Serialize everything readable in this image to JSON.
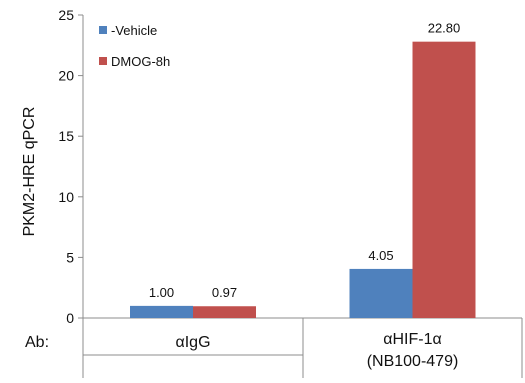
{
  "chart_data": {
    "type": "bar",
    "ylabel": "PKM2-HRE qPCR",
    "ylim": [
      0,
      25
    ],
    "yticks": [
      0,
      5,
      10,
      15,
      20,
      25
    ],
    "category_prefix": "Ab:",
    "categories": [
      {
        "lines": [
          "αIgG"
        ]
      },
      {
        "lines": [
          "αHIF-1α",
          "(NB100-479)"
        ]
      }
    ],
    "series": [
      {
        "name": "-Vehicle",
        "color": "#4F81BD",
        "values": [
          1.0,
          4.05
        ],
        "labels": [
          "1.00",
          "4.05"
        ]
      },
      {
        "name": "DMOG-8h",
        "color": "#C0504D",
        "values": [
          0.97,
          22.8
        ],
        "labels": [
          "0.97",
          "22.80"
        ]
      }
    ],
    "legend_position": "top-left",
    "grid": false
  }
}
